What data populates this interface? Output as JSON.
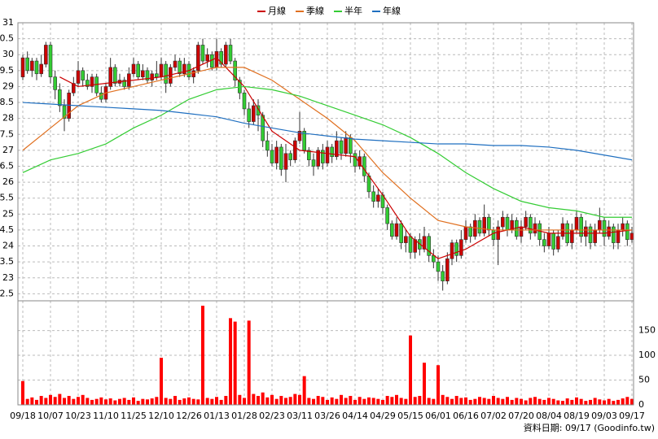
{
  "chart_data": {
    "type": "candlestick",
    "categories": [
      "09/18",
      null,
      null,
      null,
      null,
      null,
      "10/07",
      null,
      null,
      null,
      null,
      null,
      "10/23",
      null,
      null,
      null,
      null,
      null,
      "11/10",
      null,
      null,
      null,
      null,
      null,
      "11/25",
      null,
      null,
      null,
      null,
      null,
      "12/10",
      null,
      null,
      null,
      null,
      null,
      "12/26",
      null,
      null,
      null,
      null,
      null,
      "01/13",
      null,
      null,
      null,
      null,
      null,
      "01/28",
      null,
      null,
      null,
      null,
      null,
      "02/23",
      null,
      null,
      null,
      null,
      null,
      "03/11",
      null,
      null,
      null,
      null,
      null,
      "03/26",
      null,
      null,
      null,
      null,
      null,
      "04/14",
      null,
      null,
      null,
      null,
      null,
      "04/29",
      null,
      null,
      null,
      null,
      null,
      "05/15",
      null,
      null,
      null,
      null,
      null,
      "06/01",
      null,
      null,
      null,
      null,
      null,
      "06/16",
      null,
      null,
      null,
      null,
      null,
      "07/02",
      null,
      null,
      null,
      null,
      null,
      "07/20",
      null,
      null,
      null,
      null,
      null,
      "08/04",
      null,
      null,
      null,
      null,
      null,
      "08/19",
      null,
      null,
      null,
      null,
      null,
      "09/03",
      null,
      null,
      null,
      null,
      null,
      "09/17"
    ],
    "open": [
      29.3,
      29.9,
      29.5,
      29.8,
      29.4,
      29.7,
      30.3,
      29.3,
      28.9,
      28.4,
      28.0,
      28.8,
      29.1,
      29.5,
      29.2,
      29.0,
      29.3,
      28.8,
      28.6,
      29.0,
      29.6,
      29.1,
      29.2,
      29.0,
      29.4,
      29.7,
      29.3,
      29.5,
      29.2,
      29.4,
      29.3,
      29.7,
      29.1,
      29.6,
      29.8,
      29.4,
      29.7,
      29.3,
      29.5,
      30.3,
      29.8,
      30.0,
      29.6,
      30.1,
      29.7,
      30.3,
      29.8,
      29.2,
      28.8,
      28.3,
      27.9,
      28.4,
      28.1,
      27.3,
      27.0,
      26.6,
      27.1,
      26.4,
      26.9,
      26.7,
      27.3,
      27.6,
      27.0,
      26.7,
      26.5,
      27.0,
      26.6,
      27.1,
      26.8,
      27.3,
      26.9,
      27.4,
      26.9,
      26.5,
      26.8,
      26.2,
      25.7,
      25.4,
      25.6,
      25.2,
      24.7,
      24.3,
      24.7,
      24.1,
      24.3,
      23.8,
      24.2,
      23.9,
      24.3,
      23.7,
      23.5,
      23.2,
      22.9,
      23.6,
      24.1,
      23.7,
      24.2,
      24.6,
      24.3,
      24.8,
      24.4,
      24.9,
      24.5,
      24.2,
      24.6,
      24.9,
      24.5,
      24.8,
      24.3,
      24.6,
      24.9,
      24.4,
      24.7,
      24.2,
      24.0,
      24.4,
      23.9,
      24.3,
      24.7,
      24.1,
      24.5,
      24.9,
      24.3,
      24.6,
      24.1,
      24.5,
      24.8,
      24.3,
      24.6,
      24.1,
      24.5,
      24.7,
      24.2
    ],
    "high": [
      30.0,
      30.1,
      29.9,
      29.9,
      30.0,
      30.4,
      30.4,
      29.5,
      29.1,
      28.6,
      28.9,
      29.3,
      29.8,
      29.6,
      29.4,
      29.4,
      29.4,
      29.0,
      29.1,
      29.9,
      29.7,
      29.4,
      29.3,
      29.6,
      29.9,
      29.8,
      29.7,
      29.6,
      29.5,
      29.8,
      29.9,
      29.8,
      29.7,
      30.0,
      29.9,
      29.9,
      29.8,
      29.6,
      30.4,
      30.5,
      30.2,
      30.1,
      30.5,
      30.2,
      30.4,
      30.5,
      29.9,
      29.3,
      28.9,
      28.5,
      28.6,
      28.6,
      28.2,
      27.6,
      27.2,
      27.3,
      27.2,
      27.2,
      27.0,
      27.4,
      28.2,
      27.7,
      27.1,
      26.9,
      27.1,
      27.2,
      27.3,
      27.2,
      27.6,
      27.4,
      27.6,
      27.5,
      27.0,
      27.0,
      26.9,
      26.3,
      25.9,
      25.8,
      25.7,
      25.3,
      24.8,
      24.9,
      24.8,
      24.5,
      24.4,
      24.3,
      24.4,
      24.6,
      24.4,
      23.9,
      23.7,
      23.4,
      23.8,
      24.2,
      24.2,
      24.5,
      24.8,
      24.7,
      25.0,
      24.9,
      25.3,
      25.0,
      24.6,
      24.8,
      25.1,
      25.0,
      25.0,
      24.9,
      24.8,
      25.1,
      25.0,
      24.9,
      24.8,
      24.4,
      24.6,
      24.5,
      24.5,
      24.9,
      24.8,
      24.7,
      25.1,
      25.0,
      24.8,
      24.7,
      24.7,
      25.2,
      24.9,
      24.8,
      24.7,
      24.7,
      24.9,
      24.8,
      24.6
    ],
    "low": [
      29.2,
      29.4,
      29.3,
      29.2,
      29.3,
      29.6,
      29.1,
      28.6,
      28.2,
      27.6,
      27.9,
      28.7,
      29.0,
      29.0,
      28.9,
      28.8,
      28.7,
      28.5,
      28.5,
      28.9,
      29.0,
      29.0,
      28.9,
      28.9,
      29.3,
      29.2,
      29.2,
      29.1,
      29.0,
      29.2,
      29.2,
      28.8,
      29.0,
      29.5,
      29.3,
      29.3,
      29.2,
      29.1,
      29.4,
      29.7,
      29.6,
      29.5,
      29.5,
      29.6,
      29.6,
      29.7,
      29.0,
      28.6,
      28.1,
      27.7,
      27.8,
      27.6,
      27.1,
      26.8,
      26.5,
      26.4,
      26.2,
      26.0,
      26.5,
      26.6,
      27.2,
      26.9,
      26.5,
      26.2,
      26.4,
      26.4,
      26.5,
      26.6,
      26.7,
      26.7,
      26.8,
      26.6,
      26.3,
      26.4,
      26.0,
      25.5,
      25.2,
      25.2,
      25.0,
      24.5,
      24.2,
      24.2,
      23.9,
      23.8,
      23.6,
      23.6,
      23.7,
      23.8,
      23.5,
      23.3,
      22.9,
      22.6,
      22.8,
      23.4,
      23.5,
      23.6,
      24.1,
      24.1,
      24.2,
      24.3,
      24.3,
      24.3,
      24.0,
      23.4,
      24.5,
      24.3,
      24.4,
      24.2,
      24.1,
      24.5,
      24.2,
      24.3,
      24.0,
      23.8,
      23.9,
      23.7,
      23.8,
      24.2,
      24.0,
      23.9,
      24.4,
      24.1,
      24.0,
      23.9,
      24.0,
      24.4,
      24.0,
      24.2,
      23.9,
      23.9,
      24.3,
      24.0,
      24.1
    ],
    "close": [
      29.9,
      29.5,
      29.8,
      29.4,
      29.7,
      30.3,
      29.3,
      28.9,
      28.4,
      28.0,
      28.8,
      29.1,
      29.5,
      29.2,
      29.0,
      29.3,
      28.8,
      28.6,
      29.0,
      29.6,
      29.1,
      29.2,
      29.0,
      29.4,
      29.7,
      29.3,
      29.5,
      29.2,
      29.4,
      29.3,
      29.7,
      29.1,
      29.6,
      29.8,
      29.4,
      29.7,
      29.3,
      29.5,
      30.3,
      29.8,
      30.0,
      29.6,
      30.1,
      29.7,
      30.3,
      29.8,
      29.2,
      28.8,
      28.3,
      27.9,
      28.4,
      28.1,
      27.3,
      27.0,
      26.6,
      27.1,
      26.4,
      26.9,
      26.7,
      27.3,
      27.6,
      27.0,
      26.7,
      26.5,
      27.0,
      26.6,
      27.1,
      26.8,
      27.3,
      26.9,
      27.4,
      26.9,
      26.5,
      26.8,
      26.2,
      25.7,
      25.4,
      25.6,
      25.2,
      24.7,
      24.3,
      24.7,
      24.1,
      24.3,
      23.8,
      24.2,
      23.9,
      24.3,
      23.7,
      23.5,
      23.2,
      22.9,
      23.6,
      24.1,
      23.7,
      24.2,
      24.6,
      24.3,
      24.8,
      24.4,
      24.9,
      24.5,
      24.2,
      24.6,
      24.9,
      24.5,
      24.8,
      24.3,
      24.6,
      24.9,
      24.4,
      24.7,
      24.2,
      24.0,
      24.4,
      23.9,
      24.3,
      24.7,
      24.1,
      24.5,
      24.9,
      24.3,
      24.6,
      24.1,
      24.5,
      24.8,
      24.3,
      24.6,
      24.1,
      24.5,
      24.7,
      24.2,
      24.4
    ],
    "volume": [
      48,
      12,
      15,
      10,
      18,
      14,
      20,
      16,
      22,
      14,
      18,
      12,
      16,
      20,
      14,
      10,
      12,
      15,
      11,
      13,
      9,
      12,
      14,
      10,
      15,
      8,
      12,
      11,
      13,
      16,
      95,
      14,
      12,
      18,
      10,
      13,
      15,
      12,
      11,
      200,
      14,
      12,
      16,
      10,
      18,
      175,
      168,
      20,
      14,
      170,
      22,
      18,
      25,
      15,
      20,
      12,
      18,
      14,
      16,
      22,
      20,
      58,
      14,
      12,
      18,
      16,
      10,
      15,
      12,
      20,
      14,
      18,
      10,
      16,
      12,
      15,
      14,
      12,
      10,
      18,
      16,
      20,
      14,
      12,
      140,
      16,
      18,
      85,
      14,
      12,
      80,
      20,
      16,
      12,
      18,
      14,
      15,
      10,
      12,
      16,
      14,
      12,
      18,
      14,
      12,
      16,
      10,
      14,
      12,
      9,
      14,
      16,
      12,
      10,
      14,
      12,
      9,
      8,
      13,
      10,
      15,
      12,
      8,
      10,
      14,
      11,
      9,
      12,
      8,
      10,
      13,
      16,
      12
    ],
    "up_color": "#cc0000",
    "down_color": "#33cc33",
    "volume_color": "#ff0000",
    "series": [
      {
        "name": "月線",
        "color": "#cc0000",
        "x": [
          8,
          12,
          18,
          24,
          30,
          36,
          42,
          48,
          54,
          60,
          66,
          72,
          78,
          84,
          90,
          96,
          102,
          108,
          114,
          120,
          126,
          132
        ],
        "values": [
          29.3,
          29.0,
          29.1,
          29.2,
          29.3,
          29.5,
          29.9,
          29.0,
          27.6,
          27.0,
          26.9,
          26.8,
          25.6,
          24.3,
          23.6,
          23.9,
          24.4,
          24.6,
          24.4,
          24.4,
          24.4,
          24.5
        ]
      },
      {
        "name": "季線",
        "color": "#e07020",
        "x": [
          0,
          6,
          12,
          18,
          24,
          30,
          36,
          42,
          48,
          54,
          60,
          66,
          72,
          78,
          84,
          90,
          96,
          102,
          108,
          114,
          120,
          126,
          132
        ],
        "values": [
          27.0,
          27.7,
          28.4,
          28.8,
          29.0,
          29.2,
          29.4,
          29.6,
          29.6,
          29.2,
          28.6,
          28.0,
          27.3,
          26.3,
          25.5,
          24.8,
          24.6,
          24.5,
          24.5,
          24.5,
          24.5,
          24.5,
          24.5
        ]
      },
      {
        "name": "半年",
        "color": "#33cc33",
        "x": [
          0,
          6,
          12,
          18,
          24,
          30,
          36,
          42,
          48,
          54,
          60,
          66,
          72,
          78,
          84,
          90,
          96,
          102,
          108,
          114,
          120,
          126,
          132
        ],
        "values": [
          26.3,
          26.7,
          26.9,
          27.2,
          27.7,
          28.1,
          28.6,
          28.9,
          29.0,
          28.9,
          28.7,
          28.4,
          28.1,
          27.8,
          27.4,
          26.9,
          26.3,
          25.8,
          25.4,
          25.2,
          25.1,
          24.9,
          24.9
        ]
      },
      {
        "name": "年線",
        "color": "#1f6fc0",
        "x": [
          0,
          6,
          12,
          18,
          24,
          30,
          36,
          42,
          48,
          54,
          60,
          66,
          72,
          78,
          84,
          90,
          96,
          102,
          108,
          114,
          120,
          126,
          132
        ],
        "values": [
          28.5,
          28.45,
          28.4,
          28.35,
          28.3,
          28.25,
          28.15,
          28.05,
          27.85,
          27.7,
          27.55,
          27.45,
          27.35,
          27.3,
          27.25,
          27.2,
          27.2,
          27.15,
          27.15,
          27.1,
          27.0,
          26.85,
          26.7
        ]
      }
    ],
    "ylim": [
      22.28,
      31
    ],
    "yticks": [
      31,
      {
        "value": 30.5,
        "label": "0.5"
      },
      30,
      {
        "value": 29.5,
        "label": "9.5"
      },
      29,
      {
        "value": 28.5,
        "label": "8.5"
      },
      28,
      {
        "value": 27.5,
        "label": "7.5"
      },
      27,
      {
        "value": 26.5,
        "label": "6.5"
      },
      26,
      {
        "value": 25.5,
        "label": "5.5"
      },
      25,
      {
        "value": 24.5,
        "label": "4.5"
      },
      24,
      {
        "value": 23.5,
        "label": "3.5"
      },
      23,
      {
        "value": 22.5,
        "label": "2.5"
      }
    ],
    "y2lim": [
      0,
      210
    ],
    "y2ticks": [
      0,
      50,
      100,
      150
    ],
    "grid": true,
    "footer": "資料日期: 09/17  (Goodinfo.tw)"
  }
}
